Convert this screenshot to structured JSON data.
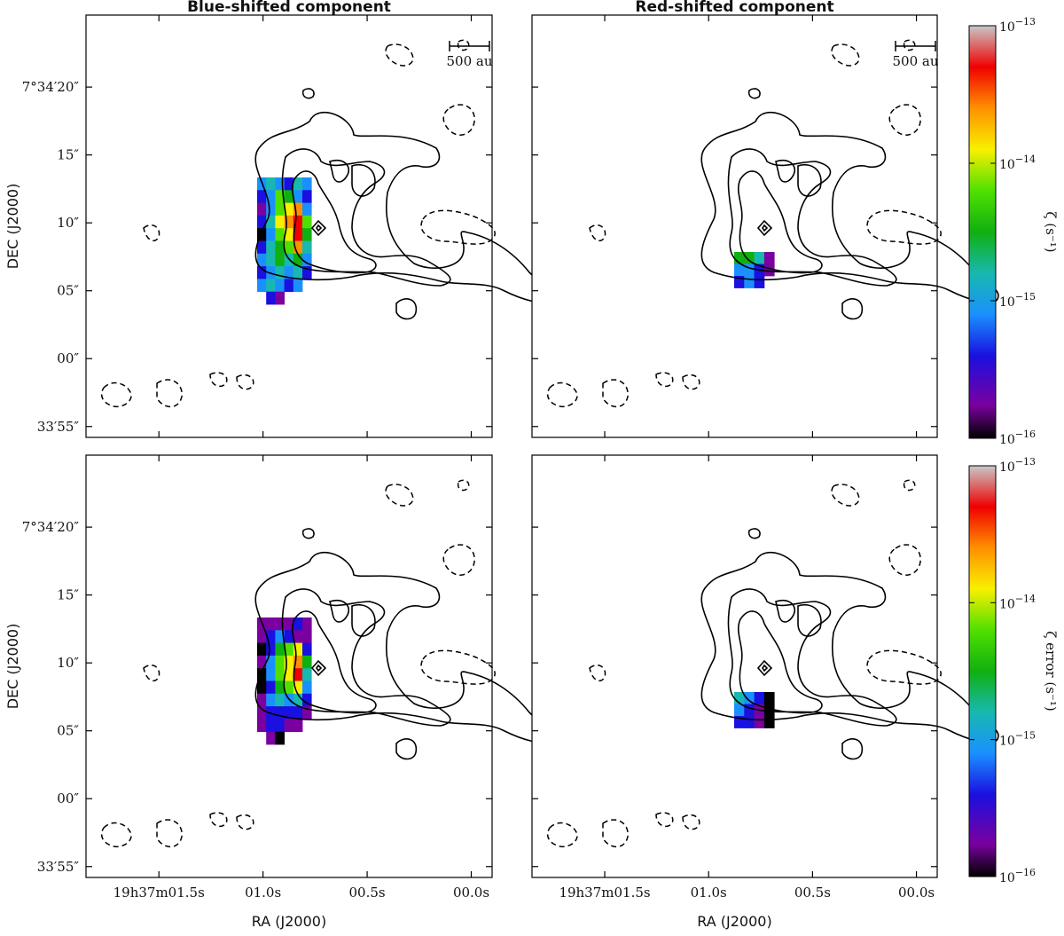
{
  "chart_data": [
    {
      "type": "heatmap",
      "title": "Blue-shifted component",
      "ylabel": "DEC (J2000)",
      "xlabel": "",
      "scalebar_label": "500 au",
      "xlim": [
        1.85,
        -0.1
      ],
      "ylim": [
        -5.8,
        25.3
      ],
      "x_tick_values": [
        1.5,
        1.0,
        0.5,
        0.0
      ],
      "y_tick_values": [
        20,
        15,
        10,
        5,
        0,
        -5
      ],
      "y_tick_labels": [
        "7°34′20″",
        "15″",
        "10″",
        "05″",
        "00″",
        "33′55″"
      ],
      "colorbar": {
        "label": "ζ (s⁻¹)",
        "scale": "log",
        "range": [
          1e-16,
          1e-13
        ]
      },
      "grid": false
    },
    {
      "type": "heatmap",
      "title": "Red-shifted component",
      "xlabel": "",
      "ylabel": "",
      "scalebar_label": "500 au",
      "xlim": [
        1.85,
        -0.1
      ],
      "ylim": [
        -5.8,
        25.3
      ],
      "x_tick_values": [
        1.5,
        1.0,
        0.5,
        0.0
      ],
      "y_tick_values": [
        20,
        15,
        10,
        5,
        0,
        -5
      ],
      "colorbar": {
        "label": "ζ (s⁻¹)",
        "scale": "log",
        "range": [
          1e-16,
          1e-13
        ]
      },
      "grid": false
    },
    {
      "type": "heatmap",
      "title": "",
      "ylabel": "DEC (J2000)",
      "xlabel": "RA (J2000)",
      "xlim": [
        1.85,
        -0.1
      ],
      "ylim": [
        -5.8,
        25.3
      ],
      "x_tick_values": [
        1.5,
        1.0,
        0.5,
        0.0
      ],
      "x_tick_labels": [
        "19h37m01.5s",
        "01.0s",
        "00.5s",
        "00.0s"
      ],
      "y_tick_values": [
        20,
        15,
        10,
        5,
        0,
        -5
      ],
      "y_tick_labels": [
        "7°34′20″",
        "15″",
        "10″",
        "05″",
        "00″",
        "33′55″"
      ],
      "colorbar": {
        "label": "ζ error (s⁻¹)",
        "scale": "log",
        "range": [
          1e-16,
          1e-13
        ]
      },
      "grid": false
    },
    {
      "type": "heatmap",
      "title": "",
      "xlabel": "RA (J2000)",
      "ylabel": "",
      "xlim": [
        1.85,
        -0.1
      ],
      "ylim": [
        -5.8,
        25.3
      ],
      "x_tick_values": [
        1.5,
        1.0,
        0.5,
        0.0
      ],
      "x_tick_labels": [
        "19h37m01.5s",
        "01.0s",
        "00.5s",
        "00.0s"
      ],
      "y_tick_values": [
        20,
        15,
        10,
        5,
        0,
        -5
      ],
      "colorbar": {
        "label": "ζ error (s⁻¹)",
        "scale": "log",
        "range": [
          1e-16,
          1e-13
        ]
      },
      "grid": false
    }
  ],
  "colorbar_ticks": [
    {
      "value": "10",
      "exp": "−13"
    },
    {
      "value": "10",
      "exp": "−14"
    },
    {
      "value": "10",
      "exp": "−15"
    },
    {
      "value": "10",
      "exp": "−16"
    }
  ],
  "colormap_stops": [
    "#000000",
    "#7a00a0",
    "#1a10e0",
    "#1a90ff",
    "#18b8b0",
    "#10b010",
    "#50e000",
    "#f8f000",
    "#ff9000",
    "#f00000",
    "#c8c8c8"
  ]
}
